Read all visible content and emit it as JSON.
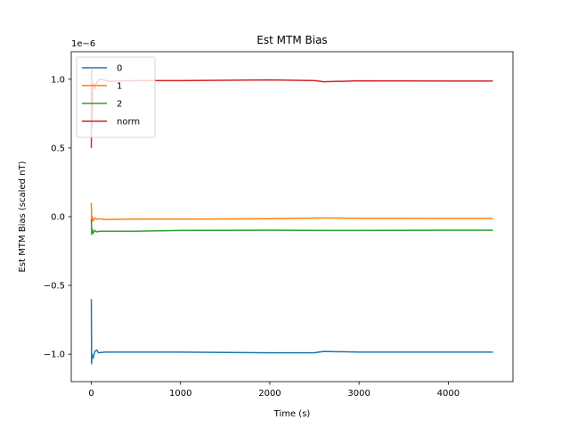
{
  "chart_data": {
    "type": "line",
    "title": "Est MTM Bias",
    "xlabel": "Time (s)",
    "ylabel": "Est MTM Bias (scaled nT)",
    "y_offset_label": "1e−6",
    "xlim": [
      -225,
      4725
    ],
    "ylim": [
      -1.2,
      1.2
    ],
    "xticks": [
      0,
      1000,
      2000,
      3000,
      4000
    ],
    "xtick_labels": [
      "0",
      "1000",
      "2000",
      "3000",
      "4000"
    ],
    "yticks": [
      -1.0,
      -0.5,
      0.0,
      0.5,
      1.0
    ],
    "ytick_labels": [
      "−1.0",
      "−0.5",
      "0.0",
      "0.5",
      "1.0"
    ],
    "grid": false,
    "legend_position": "upper-left",
    "series": [
      {
        "name": "0",
        "color": "#1f77b4",
        "points": [
          [
            0,
            -0.6
          ],
          [
            3,
            -1.07
          ],
          [
            8,
            -1.0
          ],
          [
            20,
            -1.03
          ],
          [
            40,
            -0.98
          ],
          [
            60,
            -0.97
          ],
          [
            80,
            -0.99
          ],
          [
            150,
            -0.985
          ],
          [
            400,
            -0.985
          ],
          [
            1000,
            -0.985
          ],
          [
            2000,
            -0.99
          ],
          [
            2500,
            -0.99
          ],
          [
            2600,
            -0.98
          ],
          [
            3000,
            -0.985
          ],
          [
            4000,
            -0.985
          ],
          [
            4500,
            -0.985
          ]
        ]
      },
      {
        "name": "1",
        "color": "#ff7f0e",
        "points": [
          [
            0,
            0.1
          ],
          [
            4,
            -0.04
          ],
          [
            10,
            0.0
          ],
          [
            20,
            -0.03
          ],
          [
            40,
            -0.01
          ],
          [
            60,
            -0.02
          ],
          [
            80,
            -0.015
          ],
          [
            150,
            -0.02
          ],
          [
            500,
            -0.018
          ],
          [
            1000,
            -0.018
          ],
          [
            2000,
            -0.015
          ],
          [
            2600,
            -0.01
          ],
          [
            3000,
            -0.012
          ],
          [
            4000,
            -0.013
          ],
          [
            4500,
            -0.013
          ]
        ]
      },
      {
        "name": "2",
        "color": "#2ca02c",
        "points": [
          [
            0,
            -0.02
          ],
          [
            4,
            -0.13
          ],
          [
            10,
            -0.09
          ],
          [
            20,
            -0.12
          ],
          [
            40,
            -0.1
          ],
          [
            60,
            -0.11
          ],
          [
            100,
            -0.105
          ],
          [
            500,
            -0.105
          ],
          [
            1000,
            -0.1
          ],
          [
            2000,
            -0.098
          ],
          [
            2600,
            -0.1
          ],
          [
            3000,
            -0.1
          ],
          [
            4000,
            -0.098
          ],
          [
            4500,
            -0.098
          ]
        ]
      },
      {
        "name": "norm",
        "color": "#d62728",
        "points": [
          [
            0,
            0.5
          ],
          [
            3,
            1.07
          ],
          [
            8,
            0.65
          ],
          [
            14,
            0.95
          ],
          [
            25,
            0.97
          ],
          [
            40,
            0.93
          ],
          [
            60,
            0.98
          ],
          [
            100,
            1.0
          ],
          [
            200,
            0.985
          ],
          [
            500,
            0.99
          ],
          [
            1000,
            0.99
          ],
          [
            2000,
            0.995
          ],
          [
            2500,
            0.99
          ],
          [
            2600,
            0.982
          ],
          [
            3000,
            0.988
          ],
          [
            4000,
            0.987
          ],
          [
            4500,
            0.987
          ]
        ]
      }
    ]
  }
}
